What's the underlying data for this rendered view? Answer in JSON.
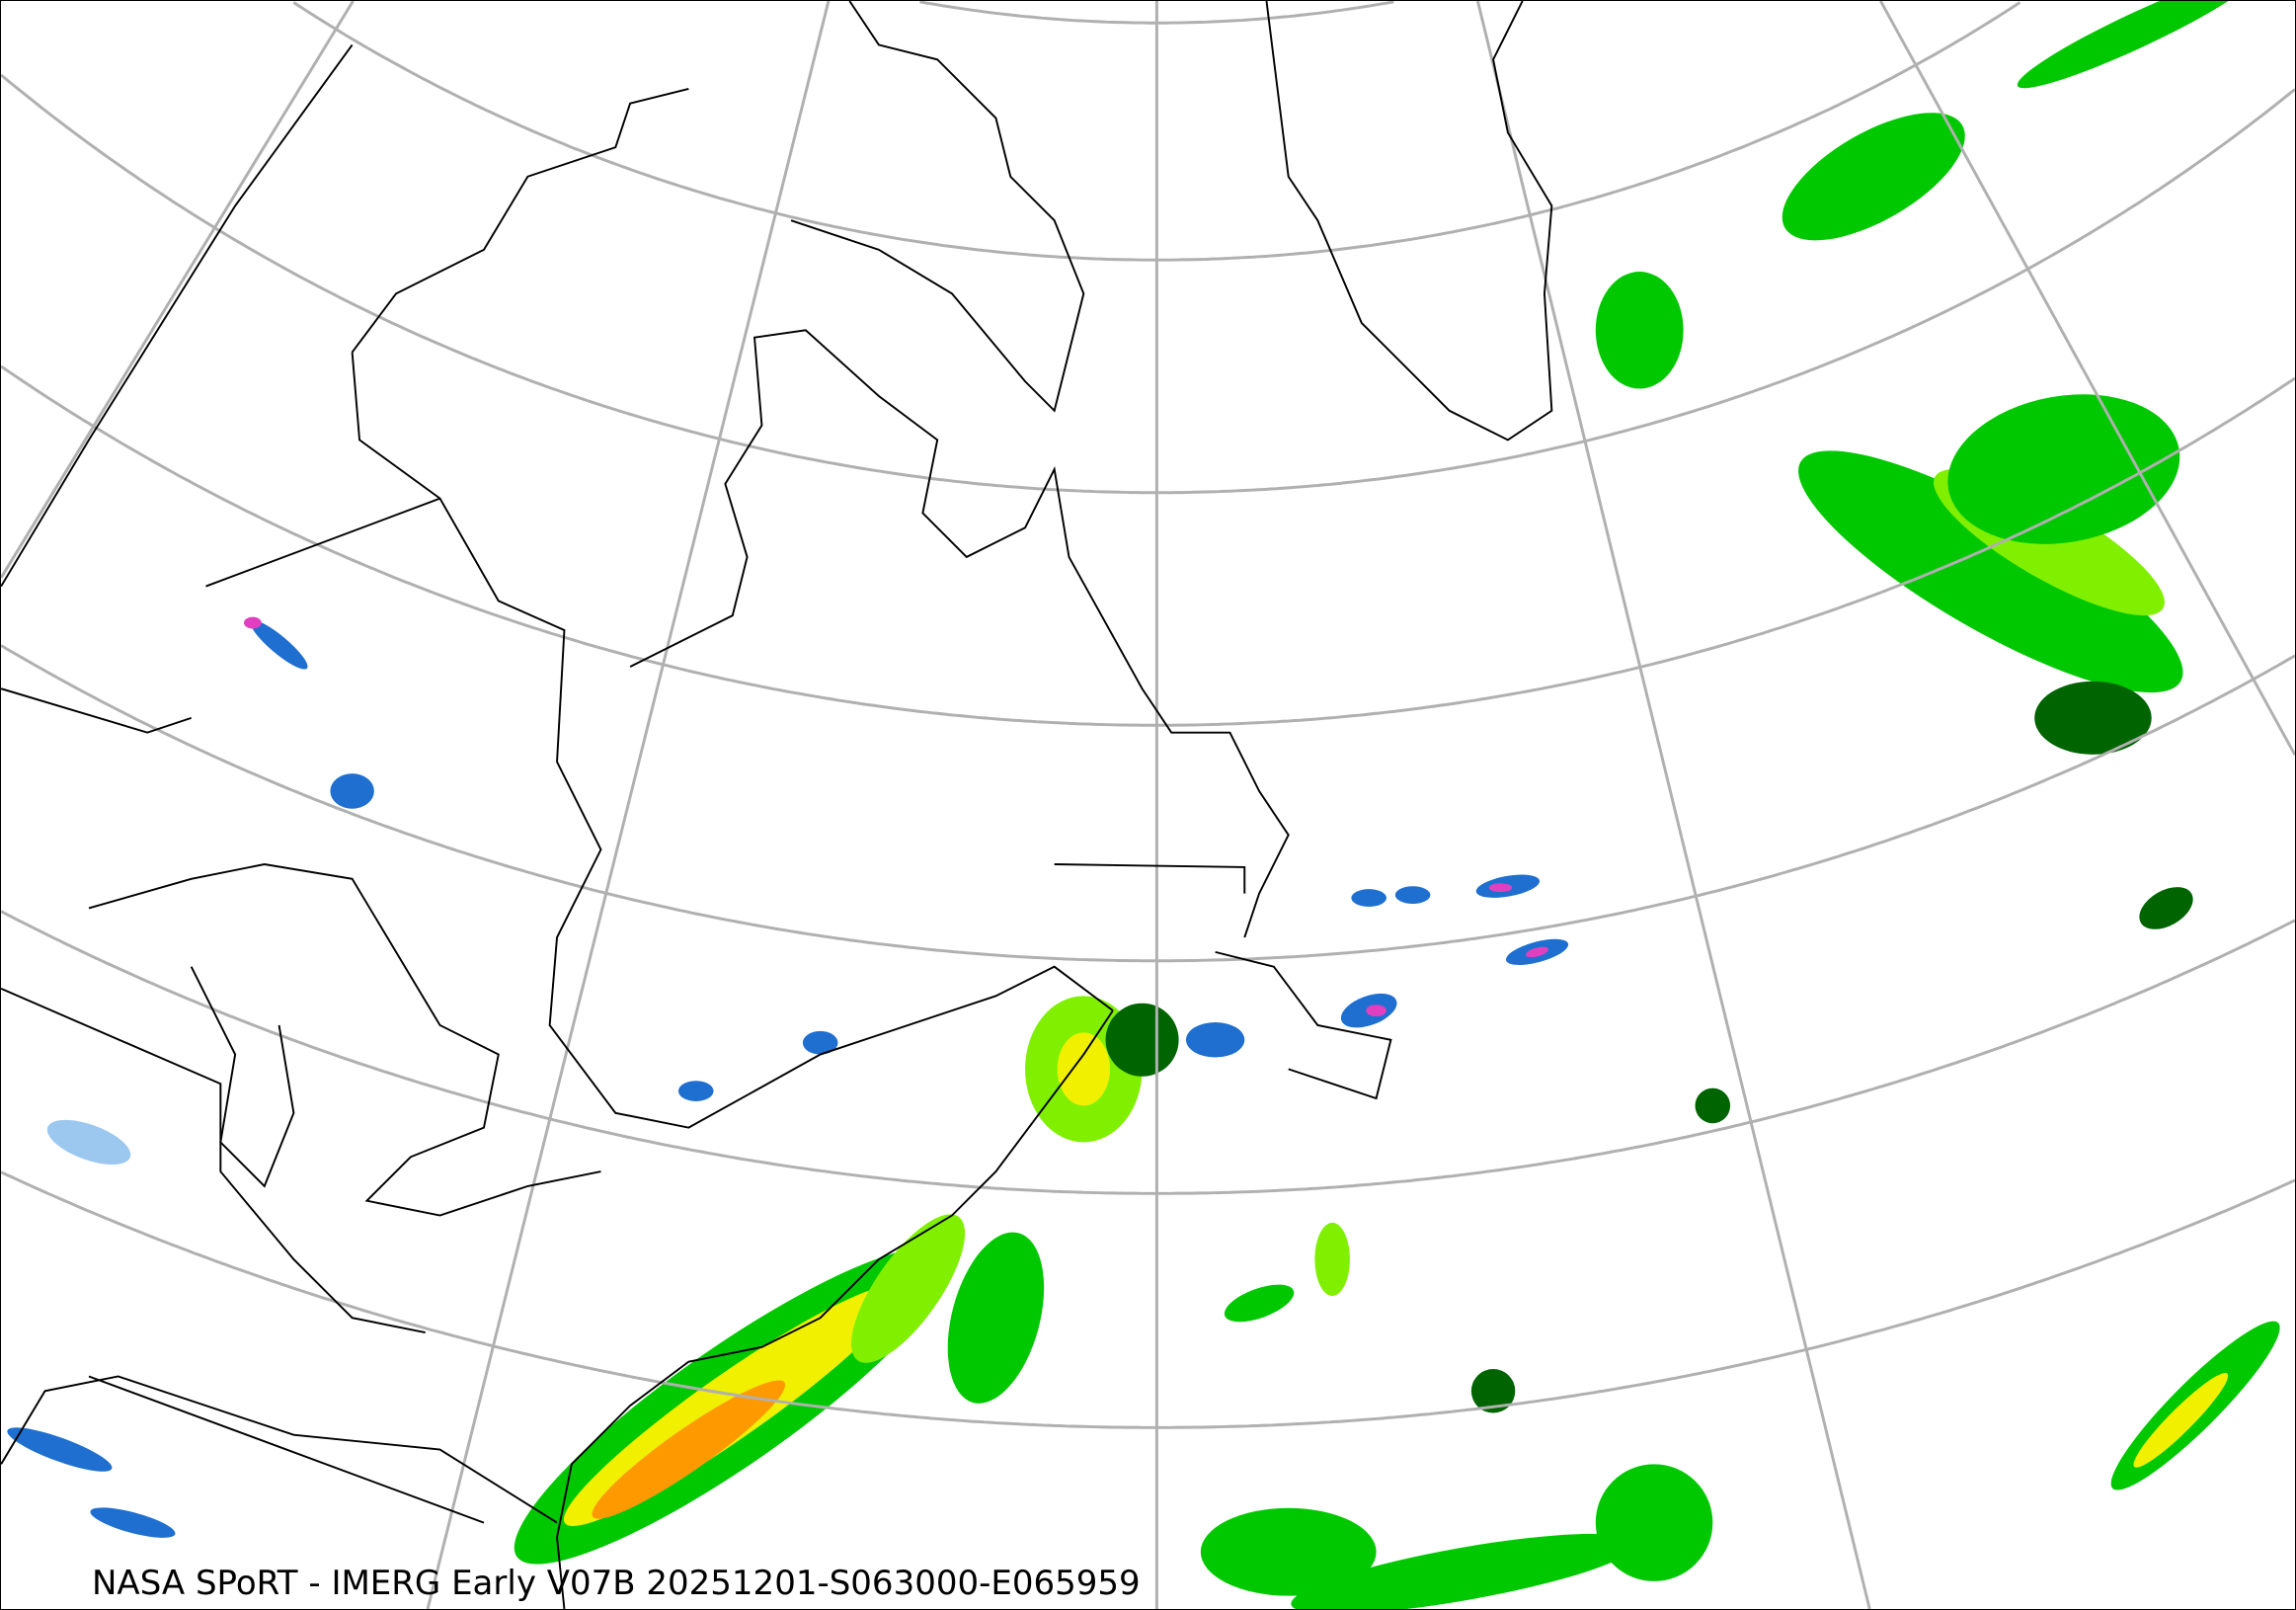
{
  "caption": "NASA SPoRT - IMERG Early V07B 20251201-S063000-E065959",
  "colors": {
    "gridline": "#b0b0b0",
    "coastline": "#000000",
    "precip_light_blue": "#9cc8f0",
    "precip_blue": "#1e6fd0",
    "precip_pink": "#e040c0",
    "precip_dark_green": "#006400",
    "precip_green": "#00c800",
    "precip_light_green": "#80f000",
    "precip_yellow": "#f0f000",
    "precip_orange": "#ff9900",
    "precip_red": "#ff3000"
  }
}
